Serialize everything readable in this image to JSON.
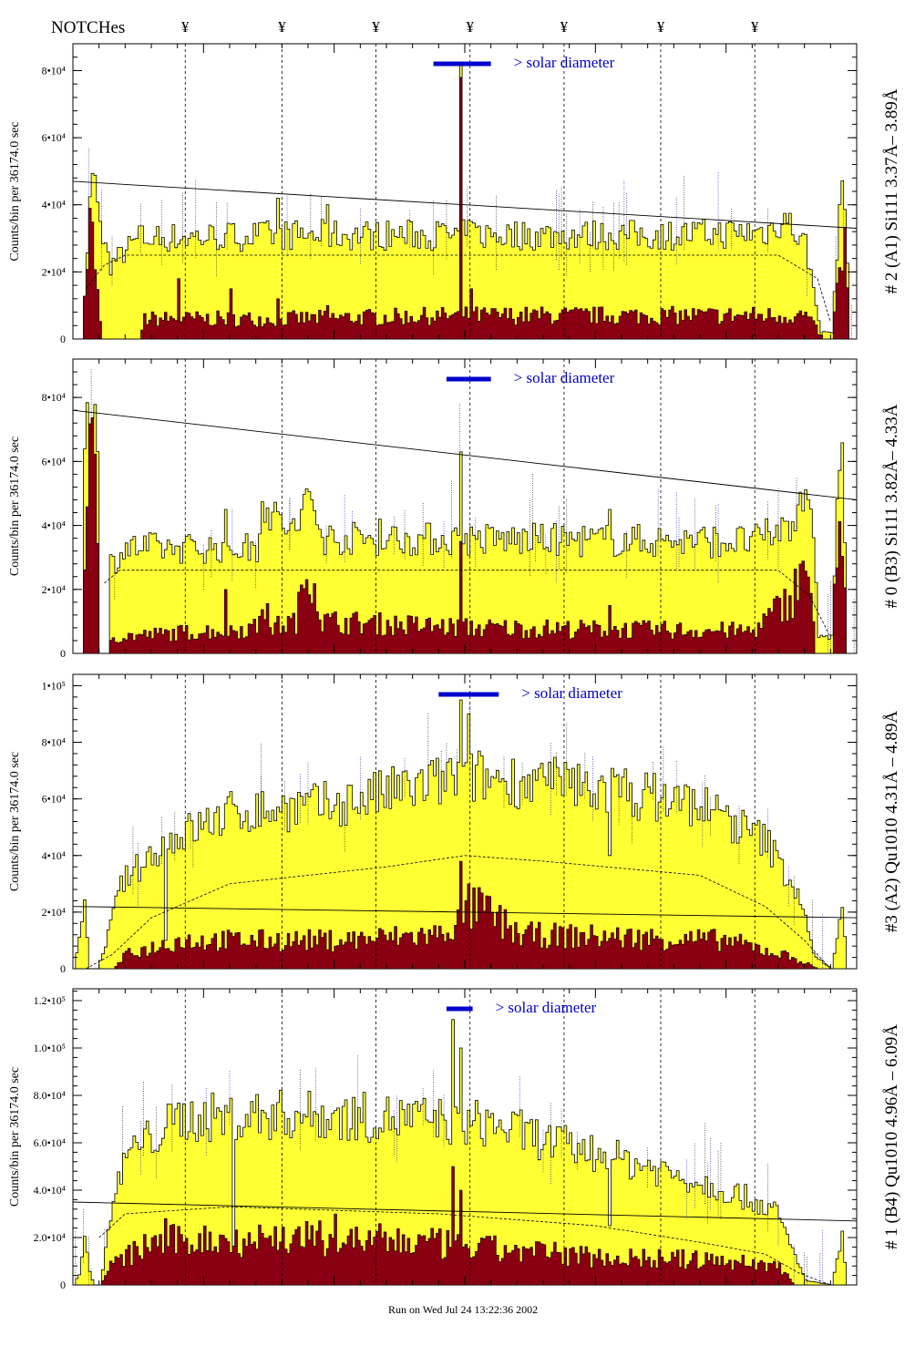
{
  "header": {
    "notches_label": "NOTCHes",
    "notch_glyph": "¥"
  },
  "footer": {
    "run_label": "Run on Wed Jul 24 13:22:36 2002"
  },
  "colors": {
    "fill": "#ffff33",
    "dark": "#880011",
    "annot": "#0000cc"
  },
  "notch_bins": [
    43,
    80,
    116,
    152,
    188,
    225,
    261
  ],
  "solar_diameter_label": "> solar diameter",
  "chart_data": [
    {
      "type": "bar",
      "right_label": "# 2 (A1) Si111  3.37Å– 3.89Å",
      "ylabel": "Counts/bin per  36174.0 sec",
      "ylim": [
        0,
        88000
      ],
      "yticks": [
        0,
        20000,
        40000,
        60000,
        80000
      ],
      "tick_labels": [
        "0",
        "2•10⁴",
        "4•10⁴",
        "6•10⁴",
        "8•10⁴"
      ],
      "bins": 300,
      "solar_bar_bins": [
        138,
        160
      ],
      "dark_ref_line": [
        47000,
        33000
      ],
      "profile_keys": [
        [
          0,
          0
        ],
        [
          3,
          0
        ],
        [
          4,
          15000
        ],
        [
          7,
          52000
        ],
        [
          10,
          32000
        ],
        [
          14,
          22000
        ],
        [
          18,
          25000
        ],
        [
          25,
          30000
        ],
        [
          80,
          31000
        ],
        [
          150,
          31000
        ],
        [
          230,
          31000
        ],
        [
          265,
          32000
        ],
        [
          272,
          36000
        ],
        [
          280,
          28000
        ],
        [
          286,
          2000
        ],
        [
          290,
          2000
        ],
        [
          293,
          38000
        ],
        [
          295,
          45000
        ],
        [
          297,
          0
        ],
        [
          300,
          0
        ]
      ],
      "dark_keys": [
        [
          0,
          0
        ],
        [
          3,
          0
        ],
        [
          4,
          16000
        ],
        [
          6,
          38000
        ],
        [
          8,
          20000
        ],
        [
          11,
          0
        ],
        [
          25,
          0
        ],
        [
          27,
          6000
        ],
        [
          80,
          6000
        ],
        [
          150,
          7000
        ],
        [
          230,
          7000
        ],
        [
          280,
          7000
        ],
        [
          287,
          0
        ],
        [
          290,
          0
        ],
        [
          293,
          20000
        ],
        [
          295,
          28000
        ],
        [
          297,
          0
        ],
        [
          300,
          0
        ]
      ],
      "dashed_keys": [
        [
          5,
          15000
        ],
        [
          12,
          22000
        ],
        [
          20,
          25000
        ],
        [
          30,
          25000
        ],
        [
          270,
          25000
        ],
        [
          285,
          18000
        ],
        [
          290,
          5000
        ]
      ],
      "spikes": [
        [
          148,
          82000
        ],
        [
          152,
          35000
        ],
        [
          97,
          40000
        ],
        [
          78,
          42000
        ]
      ],
      "dark_spikes": [
        [
          148,
          78000
        ],
        [
          152,
          15000
        ],
        [
          97,
          10000
        ],
        [
          78,
          12000
        ],
        [
          60,
          15000
        ],
        [
          40,
          18000
        ]
      ]
    },
    {
      "type": "bar",
      "right_label": "# 0 (B3) Si111  3.82Å– 4.33Å",
      "ylabel": "Counts/bin per  36174.0 sec",
      "ylim": [
        0,
        92000
      ],
      "yticks": [
        0,
        20000,
        40000,
        60000,
        80000
      ],
      "tick_labels": [
        "0",
        "2•10⁴",
        "4•10⁴",
        "6•10⁴",
        "8•10⁴"
      ],
      "bins": 300,
      "solar_bar_bins": [
        143,
        160
      ],
      "dark_ref_line": [
        76000,
        48000
      ],
      "profile_keys": [
        [
          0,
          0
        ],
        [
          3,
          0
        ],
        [
          4,
          70000
        ],
        [
          7,
          86000
        ],
        [
          9,
          60000
        ],
        [
          10,
          0
        ],
        [
          13,
          0
        ],
        [
          14,
          28000
        ],
        [
          20,
          33000
        ],
        [
          70,
          33000
        ],
        [
          72,
          50000
        ],
        [
          75,
          43000
        ],
        [
          85,
          38000
        ],
        [
          90,
          50000
        ],
        [
          95,
          36000
        ],
        [
          260,
          35000
        ],
        [
          275,
          40000
        ],
        [
          280,
          55000
        ],
        [
          283,
          40000
        ],
        [
          285,
          5000
        ],
        [
          290,
          5000
        ],
        [
          292,
          50000
        ],
        [
          294,
          62000
        ],
        [
          296,
          0
        ],
        [
          300,
          0
        ]
      ],
      "dark_keys": [
        [
          0,
          0
        ],
        [
          3,
          0
        ],
        [
          4,
          40000
        ],
        [
          7,
          65000
        ],
        [
          9,
          30000
        ],
        [
          10,
          0
        ],
        [
          13,
          0
        ],
        [
          14,
          5000
        ],
        [
          70,
          8000
        ],
        [
          72,
          18000
        ],
        [
          75,
          8000
        ],
        [
          85,
          10000
        ],
        [
          90,
          30000
        ],
        [
          95,
          10000
        ],
        [
          150,
          8000
        ],
        [
          260,
          7000
        ],
        [
          275,
          18000
        ],
        [
          280,
          30000
        ],
        [
          284,
          0
        ],
        [
          290,
          0
        ],
        [
          292,
          35000
        ],
        [
          294,
          45000
        ],
        [
          296,
          0
        ],
        [
          300,
          0
        ]
      ],
      "dashed_keys": [
        [
          12,
          22000
        ],
        [
          18,
          26000
        ],
        [
          30,
          26000
        ],
        [
          270,
          26000
        ],
        [
          282,
          18000
        ],
        [
          290,
          5000
        ]
      ],
      "spikes": [
        [
          148,
          63000
        ],
        [
          205,
          45000
        ],
        [
          58,
          45000
        ],
        [
          117,
          42000
        ]
      ],
      "dark_spikes": [
        [
          148,
          35000
        ],
        [
          205,
          15000
        ],
        [
          58,
          20000
        ]
      ]
    },
    {
      "type": "bar",
      "right_label": "#3 (A2) Qu1010  4.31Å – 4.89Å",
      "ylabel": "Counts/bin per  36174.0 sec",
      "ylim": [
        0,
        104000
      ],
      "yticks": [
        0,
        20000,
        40000,
        60000,
        80000,
        100000
      ],
      "tick_labels": [
        "0",
        "2•10⁴",
        "4•10⁴",
        "6•10⁴",
        "8•10⁴",
        "1•10⁵"
      ],
      "bins": 300,
      "solar_bar_bins": [
        140,
        163
      ],
      "dark_ref_line": [
        22000,
        18000
      ],
      "profile_keys": [
        [
          0,
          0
        ],
        [
          2,
          10000
        ],
        [
          4,
          25000
        ],
        [
          6,
          0
        ],
        [
          9,
          0
        ],
        [
          13,
          12000
        ],
        [
          18,
          30000
        ],
        [
          35,
          45000
        ],
        [
          60,
          55000
        ],
        [
          100,
          58000
        ],
        [
          150,
          68000
        ],
        [
          200,
          64000
        ],
        [
          240,
          58000
        ],
        [
          265,
          45000
        ],
        [
          278,
          25000
        ],
        [
          283,
          5000
        ],
        [
          290,
          0
        ],
        [
          292,
          10000
        ],
        [
          294,
          25000
        ],
        [
          296,
          0
        ],
        [
          300,
          0
        ]
      ],
      "dark_keys": [
        [
          0,
          0
        ],
        [
          5,
          0
        ],
        [
          15,
          0
        ],
        [
          20,
          5000
        ],
        [
          40,
          10000
        ],
        [
          100,
          10000
        ],
        [
          140,
          12000
        ],
        [
          155,
          22000
        ],
        [
          170,
          12000
        ],
        [
          250,
          10000
        ],
        [
          275,
          4000
        ],
        [
          285,
          0
        ],
        [
          300,
          0
        ]
      ],
      "dashed_keys": [
        [
          5,
          0
        ],
        [
          15,
          5000
        ],
        [
          30,
          18000
        ],
        [
          60,
          30000
        ],
        [
          120,
          36000
        ],
        [
          150,
          40000
        ],
        [
          180,
          38000
        ],
        [
          240,
          33000
        ],
        [
          265,
          22000
        ],
        [
          280,
          10000
        ],
        [
          290,
          0
        ]
      ],
      "spikes": [
        [
          148,
          95000
        ],
        [
          151,
          90000
        ],
        [
          205,
          40000
        ],
        [
          35,
          10000
        ]
      ],
      "dark_spikes": [
        [
          148,
          38000
        ],
        [
          151,
          30000
        ],
        [
          160,
          20000
        ]
      ]
    },
    {
      "type": "bar",
      "right_label": "# 1 (B4) Qu1010 4.96Å – 6.09Å",
      "ylabel": "Counts/bin per  36174.0 sec",
      "ylim": [
        0,
        125000
      ],
      "yticks": [
        0,
        20000,
        40000,
        60000,
        80000,
        100000,
        120000
      ],
      "tick_labels": [
        "0",
        "2.0•10⁴",
        "4.0•10⁴",
        "6.0•10⁴",
        "8.0•10⁴",
        "1.0•10⁵",
        "1.2•10⁵"
      ],
      "bins": 300,
      "solar_bar_bins": [
        143,
        153
      ],
      "dark_ref_line": [
        35000,
        27000
      ],
      "profile_keys": [
        [
          0,
          0
        ],
        [
          2,
          5000
        ],
        [
          4,
          20000
        ],
        [
          6,
          5000
        ],
        [
          8,
          0
        ],
        [
          10,
          0
        ],
        [
          14,
          30000
        ],
        [
          20,
          55000
        ],
        [
          40,
          70000
        ],
        [
          80,
          72000
        ],
        [
          130,
          70000
        ],
        [
          160,
          68000
        ],
        [
          190,
          58000
        ],
        [
          220,
          50000
        ],
        [
          250,
          40000
        ],
        [
          268,
          32000
        ],
        [
          275,
          15000
        ],
        [
          280,
          2000
        ],
        [
          290,
          0
        ],
        [
          292,
          10000
        ],
        [
          294,
          20000
        ],
        [
          296,
          0
        ],
        [
          300,
          0
        ]
      ],
      "dark_keys": [
        [
          0,
          0
        ],
        [
          10,
          0
        ],
        [
          14,
          8000
        ],
        [
          30,
          18000
        ],
        [
          80,
          20000
        ],
        [
          130,
          18000
        ],
        [
          160,
          15000
        ],
        [
          200,
          12000
        ],
        [
          250,
          10000
        ],
        [
          270,
          8000
        ],
        [
          276,
          0
        ],
        [
          300,
          0
        ]
      ],
      "dashed_keys": [
        [
          10,
          20000
        ],
        [
          20,
          30000
        ],
        [
          60,
          33000
        ],
        [
          140,
          30000
        ],
        [
          200,
          25000
        ],
        [
          240,
          18000
        ],
        [
          265,
          13000
        ],
        [
          278,
          5000
        ],
        [
          290,
          0
        ]
      ],
      "spikes": [
        [
          145,
          112000
        ],
        [
          148,
          100000
        ],
        [
          205,
          25000
        ],
        [
          61,
          5000
        ]
      ],
      "dark_spikes": [
        [
          145,
          50000
        ],
        [
          148,
          40000
        ],
        [
          100,
          30000
        ],
        [
          35,
          28000
        ]
      ]
    }
  ]
}
